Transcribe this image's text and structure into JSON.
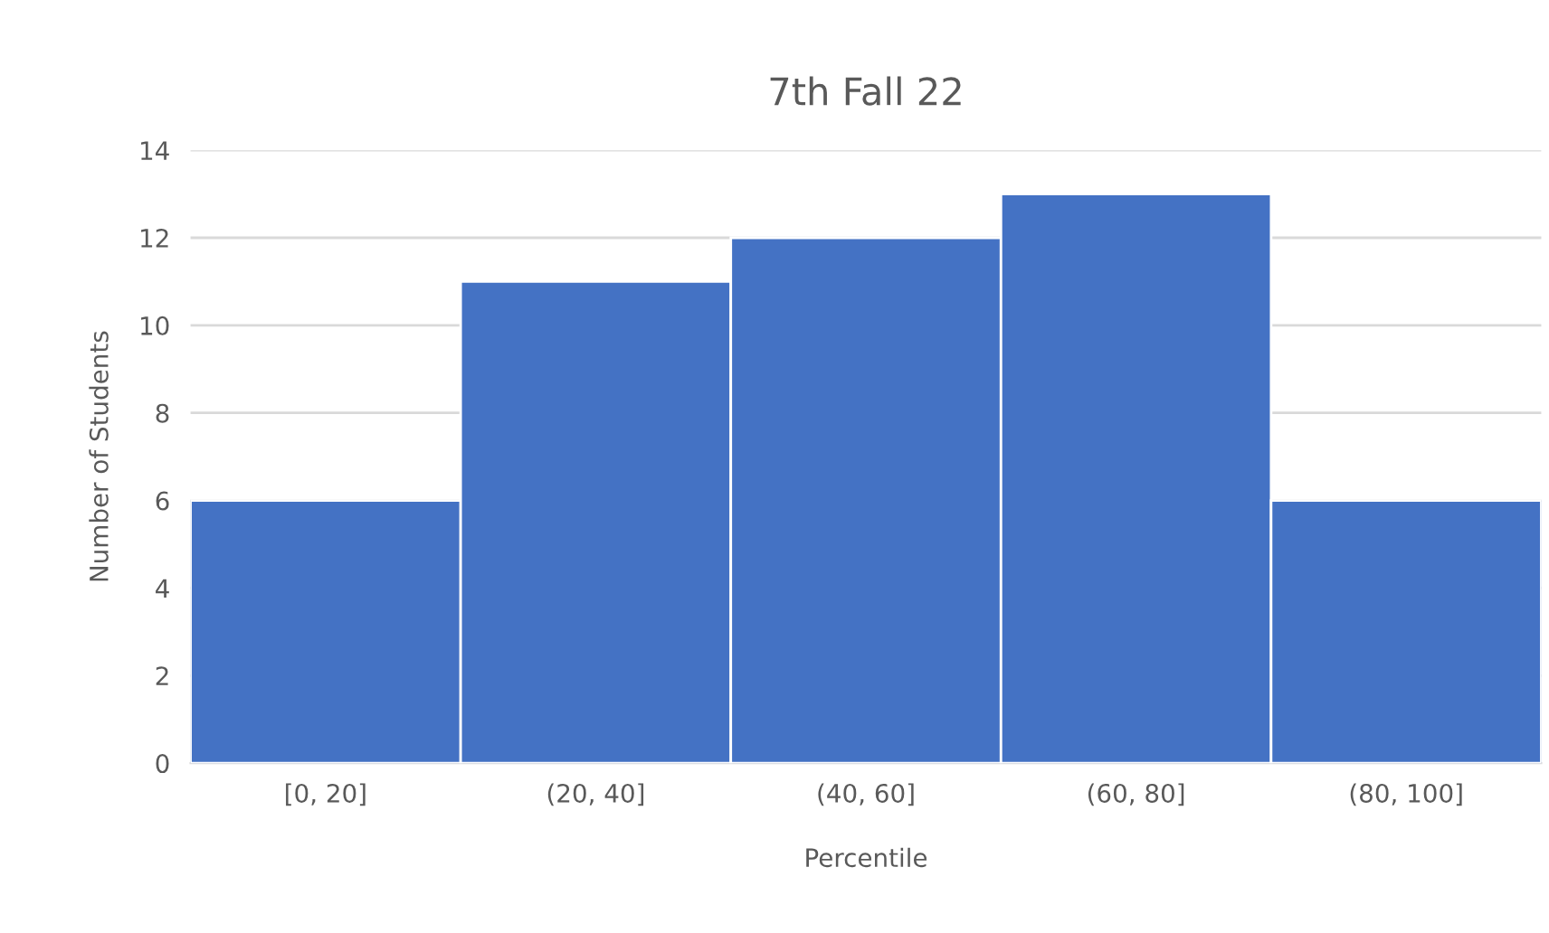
{
  "chart_data": {
    "type": "bar",
    "title": "7th Fall 22",
    "xlabel": "Percentile",
    "ylabel": "Number of Students",
    "categories": [
      "[0, 20]",
      "(20, 40]",
      "(40, 60]",
      "(60, 80]",
      "(80, 100]"
    ],
    "values": [
      6,
      11,
      12,
      13,
      6
    ],
    "color": "#4472c4",
    "ylim": [
      0,
      14
    ],
    "yticks": [
      0,
      2,
      4,
      6,
      8,
      10,
      12,
      14
    ],
    "grid": "y",
    "legend": false
  }
}
